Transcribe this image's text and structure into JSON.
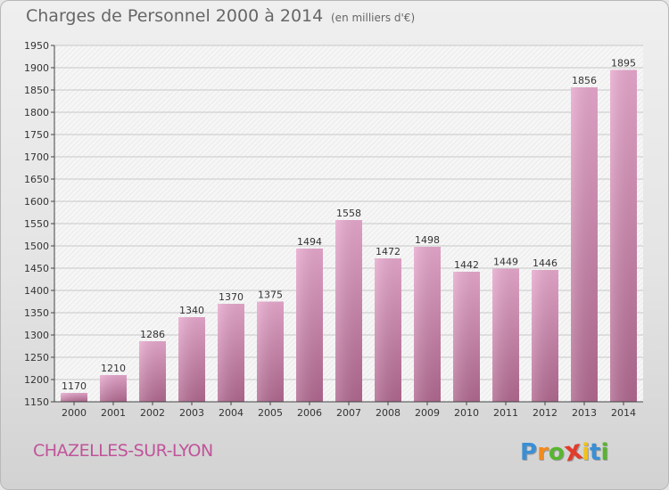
{
  "chart_data": {
    "type": "bar",
    "title": "Charges de Personnel 2000 à 2014",
    "subtitle": "(en milliers d'€)",
    "categories": [
      "2000",
      "2001",
      "2002",
      "2003",
      "2004",
      "2005",
      "2006",
      "2007",
      "2008",
      "2009",
      "2010",
      "2011",
      "2012",
      "2013",
      "2014"
    ],
    "values": [
      1170,
      1210,
      1286,
      1340,
      1370,
      1375,
      1494,
      1558,
      1472,
      1498,
      1442,
      1449,
      1446,
      1856,
      1895
    ],
    "ylim": [
      1150,
      1950
    ],
    "yticks": [
      1150,
      1200,
      1250,
      1300,
      1350,
      1400,
      1450,
      1500,
      1550,
      1600,
      1650,
      1700,
      1750,
      1800,
      1850,
      1900,
      1950
    ],
    "grid": true,
    "bar_color": "#c2729f"
  },
  "location": "CHAZELLES-SUR-LYON",
  "brand": {
    "letters": [
      "P",
      "r",
      "o",
      "x",
      "i",
      "t",
      "i"
    ],
    "colors": [
      "#3a8fd4",
      "#f28a1c",
      "#58b530",
      "#e23c2c",
      "#f2c21c",
      "#3a8fd4",
      "#58b530"
    ]
  }
}
